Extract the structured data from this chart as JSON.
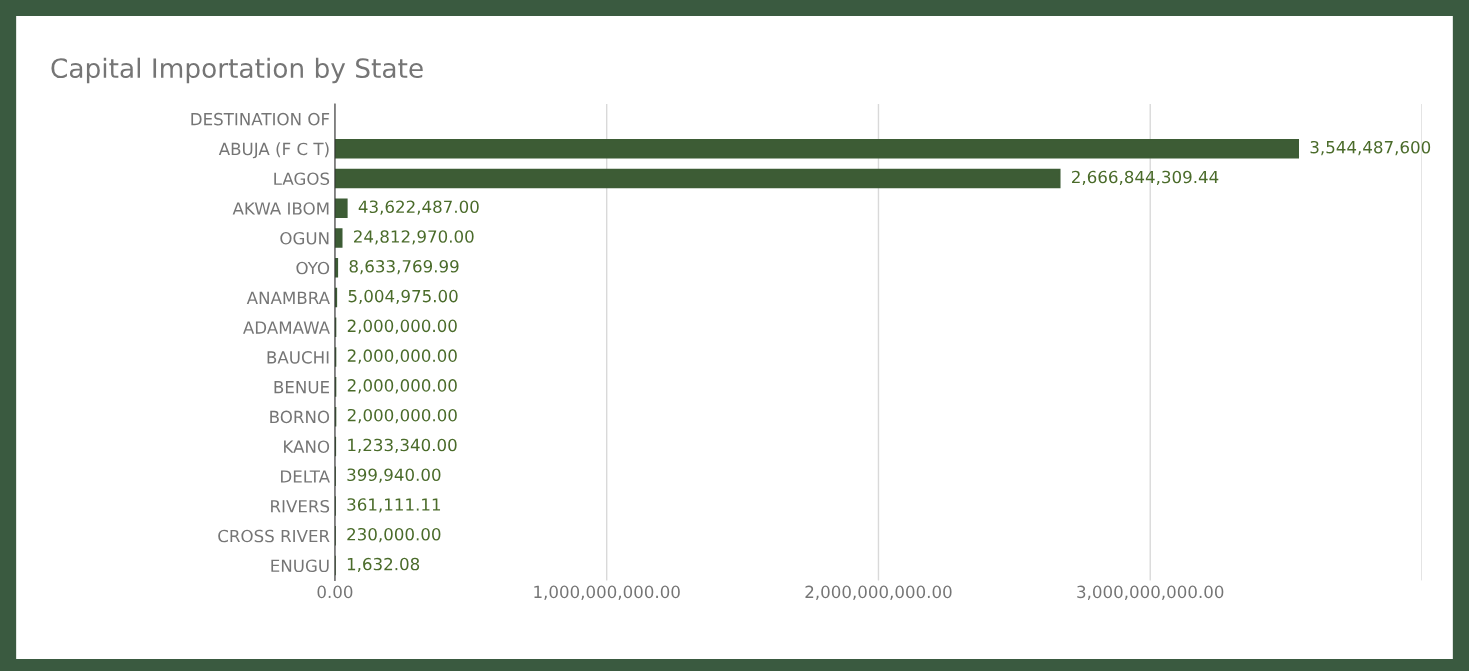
{
  "chart_data": {
    "type": "bar",
    "orientation": "horizontal",
    "title": "Capital Importation by State",
    "categories": [
      "DESTINATION OF",
      "ABUJA (F C T)",
      "LAGOS",
      "AKWA IBOM",
      "OGUN",
      "OYO",
      "ANAMBRA",
      "ADAMAWA",
      "BAUCHI",
      "BENUE",
      "BORNO",
      "KANO",
      "DELTA",
      "RIVERS",
      "CROSS RIVER",
      "ENUGU"
    ],
    "values": [
      null,
      3544487600,
      2666844309.44,
      43622487.0,
      24812970.0,
      8633769.99,
      5004975.0,
      2000000.0,
      2000000.0,
      2000000.0,
      2000000.0,
      1233340.0,
      399940.0,
      361111.11,
      230000.0,
      1632.08
    ],
    "value_labels": [
      null,
      "3,544,487,600",
      "2,666,844,309.44",
      "43,622,487.00",
      "24,812,970.00",
      "8,633,769.99",
      "5,004,975.00",
      "2,000,000.00",
      "2,000,000.00",
      "2,000,000.00",
      "2,000,000.00",
      "1,233,340.00",
      "399,940.00",
      "361,111.11",
      "230,000.00",
      "1,632.08"
    ],
    "color": "#3d5c35",
    "xlim": [
      0,
      4000000000
    ],
    "xticks": [
      {
        "value": 0,
        "label": "0.00"
      },
      {
        "value": 1000000000,
        "label": "1,000,000,000.00"
      },
      {
        "value": 2000000000,
        "label": "2,000,000,000.00"
      },
      {
        "value": 3000000000,
        "label": "3,000,000,000.00"
      },
      {
        "value": 4000000000,
        "label": null
      }
    ],
    "grid": "x",
    "legend": false
  }
}
